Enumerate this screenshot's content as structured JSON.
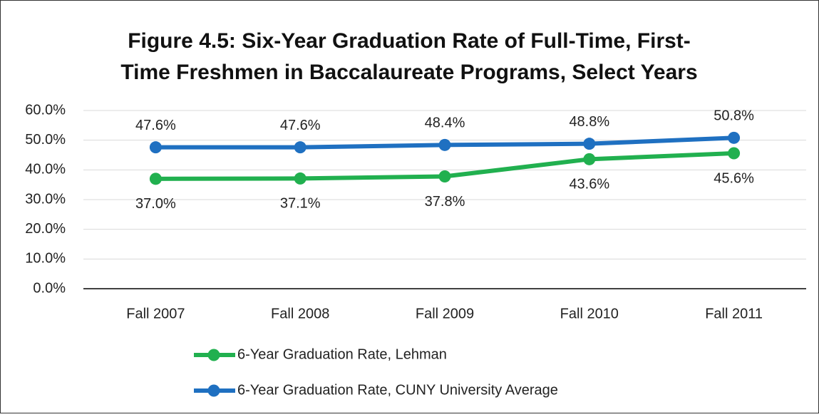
{
  "chart_data": {
    "type": "line",
    "title": [
      "Figure 4.5:  Six-Year Graduation Rate of Full-Time, First-",
      "Time Freshmen in Baccalaureate Programs, Select Years"
    ],
    "categories": [
      "Fall 2007",
      "Fall 2008",
      "Fall 2009",
      "Fall 2010",
      "Fall 2011"
    ],
    "series": [
      {
        "name": "6-Year Graduation Rate, Lehman",
        "color": "#21b04f",
        "values": [
          37.0,
          37.1,
          37.8,
          43.6,
          45.6
        ],
        "value_labels": [
          "37.0%",
          "37.1%",
          "37.8%",
          "43.6%",
          "45.6%"
        ]
      },
      {
        "name": "6-Year Graduation Rate, CUNY University Average",
        "color": "#1f70c1",
        "values": [
          47.6,
          47.6,
          48.4,
          48.8,
          50.8
        ],
        "value_labels": [
          "47.6%",
          "47.6%",
          "48.4%",
          "48.8%",
          "50.8%"
        ]
      }
    ],
    "ylim": [
      0,
      60
    ],
    "yticks": [
      {
        "value": 0,
        "label": "0.0%"
      },
      {
        "value": 10,
        "label": "10.0%"
      },
      {
        "value": 20,
        "label": "20.0%"
      },
      {
        "value": 30,
        "label": "30.0%"
      },
      {
        "value": 40,
        "label": "40.0%"
      },
      {
        "value": 50,
        "label": "50.0%"
      },
      {
        "value": 60,
        "label": "60.0%"
      }
    ],
    "grid": true
  }
}
